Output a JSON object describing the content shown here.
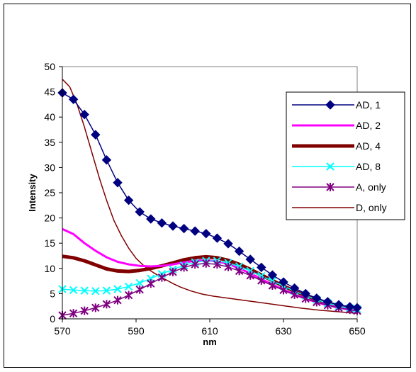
{
  "chart_data": {
    "type": "line",
    "xlabel": "nm",
    "ylabel": "Intensity",
    "xlim": [
      570,
      650
    ],
    "ylim": [
      0,
      50
    ],
    "xticks": [
      570,
      590,
      610,
      630,
      650
    ],
    "yticks": [
      0,
      5,
      10,
      15,
      20,
      25,
      30,
      35,
      40,
      45,
      50
    ],
    "grid": false,
    "legend_position": "right",
    "series": [
      {
        "name": "AD, 1",
        "color": "#000080",
        "marker": "diamond",
        "line": "thin",
        "points": [
          [
            570,
            44.8
          ],
          [
            573,
            43.5
          ],
          [
            576,
            40.5
          ],
          [
            579,
            36.5
          ],
          [
            582,
            31.5
          ],
          [
            585,
            27
          ],
          [
            588,
            23.5
          ],
          [
            591,
            21.2
          ],
          [
            594,
            19.8
          ],
          [
            597,
            19
          ],
          [
            600,
            18.4
          ],
          [
            603,
            17.9
          ],
          [
            606,
            17.4
          ],
          [
            609,
            16.9
          ],
          [
            612,
            16
          ],
          [
            615,
            14.9
          ],
          [
            618,
            13.4
          ],
          [
            621,
            11.8
          ],
          [
            624,
            10.2
          ],
          [
            627,
            8.7
          ],
          [
            630,
            7.3
          ],
          [
            633,
            6.1
          ],
          [
            636,
            5
          ],
          [
            639,
            4.1
          ],
          [
            642,
            3.4
          ],
          [
            645,
            2.8
          ],
          [
            648,
            2.4
          ],
          [
            650,
            2.2
          ]
        ]
      },
      {
        "name": "AD, 2",
        "color": "#FF00FF",
        "marker": "none",
        "line": "medium",
        "points": [
          [
            570,
            17.8
          ],
          [
            573,
            16.8
          ],
          [
            576,
            15
          ],
          [
            579,
            13.5
          ],
          [
            582,
            12.2
          ],
          [
            585,
            11.3
          ],
          [
            588,
            10.8
          ],
          [
            591,
            10.5
          ],
          [
            594,
            10.4
          ],
          [
            597,
            10.5
          ],
          [
            600,
            10.8
          ],
          [
            603,
            11.2
          ],
          [
            606,
            11.5
          ],
          [
            609,
            11.6
          ],
          [
            612,
            11.4
          ],
          [
            615,
            10.9
          ],
          [
            618,
            10
          ],
          [
            621,
            9
          ],
          [
            624,
            7.9
          ],
          [
            627,
            6.8
          ],
          [
            630,
            5.8
          ],
          [
            633,
            4.8
          ],
          [
            636,
            4
          ],
          [
            639,
            3.3
          ],
          [
            642,
            2.7
          ],
          [
            645,
            2.2
          ],
          [
            648,
            1.8
          ],
          [
            650,
            1.6
          ]
        ]
      },
      {
        "name": "AD, 4",
        "color": "#800000",
        "marker": "none",
        "line": "thick",
        "points": [
          [
            570,
            12.4
          ],
          [
            573,
            12.1
          ],
          [
            576,
            11.5
          ],
          [
            579,
            10.7
          ],
          [
            582,
            9.9
          ],
          [
            585,
            9.5
          ],
          [
            588,
            9.4
          ],
          [
            591,
            9.6
          ],
          [
            594,
            10
          ],
          [
            597,
            10.5
          ],
          [
            600,
            11.1
          ],
          [
            603,
            11.7
          ],
          [
            606,
            12.1
          ],
          [
            609,
            12.3
          ],
          [
            612,
            12.1
          ],
          [
            615,
            11.6
          ],
          [
            618,
            10.8
          ],
          [
            621,
            9.8
          ],
          [
            624,
            8.7
          ],
          [
            627,
            7.6
          ],
          [
            630,
            6.5
          ],
          [
            633,
            5.5
          ],
          [
            636,
            4.6
          ],
          [
            639,
            3.8
          ],
          [
            642,
            3.1
          ],
          [
            645,
            2.5
          ],
          [
            648,
            2.1
          ],
          [
            650,
            1.9
          ]
        ]
      },
      {
        "name": "AD, 8",
        "color": "#00FFFF",
        "marker": "x",
        "line": "thin",
        "points": [
          [
            570,
            5.9
          ],
          [
            573,
            5.7
          ],
          [
            576,
            5.6
          ],
          [
            579,
            5.5
          ],
          [
            582,
            5.6
          ],
          [
            585,
            5.9
          ],
          [
            588,
            6.4
          ],
          [
            591,
            7.1
          ],
          [
            594,
            8
          ],
          [
            597,
            8.9
          ],
          [
            600,
            9.8
          ],
          [
            603,
            10.6
          ],
          [
            606,
            11.2
          ],
          [
            609,
            11.5
          ],
          [
            612,
            11.5
          ],
          [
            615,
            11.1
          ],
          [
            618,
            10.4
          ],
          [
            621,
            9.5
          ],
          [
            624,
            8.5
          ],
          [
            627,
            7.5
          ],
          [
            630,
            6.5
          ],
          [
            633,
            5.5
          ],
          [
            636,
            4.6
          ],
          [
            639,
            3.8
          ],
          [
            642,
            3.1
          ],
          [
            645,
            2.5
          ],
          [
            648,
            2.1
          ],
          [
            650,
            1.9
          ]
        ]
      },
      {
        "name": "A, only",
        "color": "#800080",
        "marker": "asterisk",
        "line": "thin",
        "points": [
          [
            570,
            0.7
          ],
          [
            573,
            1.1
          ],
          [
            576,
            1.6
          ],
          [
            579,
            2.2
          ],
          [
            582,
            2.9
          ],
          [
            585,
            3.7
          ],
          [
            588,
            4.7
          ],
          [
            591,
            5.8
          ],
          [
            594,
            7
          ],
          [
            597,
            8.2
          ],
          [
            600,
            9.3
          ],
          [
            603,
            10.2
          ],
          [
            606,
            10.8
          ],
          [
            609,
            11
          ],
          [
            612,
            10.8
          ],
          [
            615,
            10.3
          ],
          [
            618,
            9.5
          ],
          [
            621,
            8.6
          ],
          [
            624,
            7.6
          ],
          [
            627,
            6.6
          ],
          [
            630,
            5.7
          ],
          [
            633,
            4.8
          ],
          [
            636,
            4
          ],
          [
            639,
            3.3
          ],
          [
            642,
            2.7
          ],
          [
            645,
            2.2
          ],
          [
            648,
            1.8
          ],
          [
            650,
            1.6
          ]
        ]
      },
      {
        "name": "D, only",
        "color": "#800000",
        "marker": "none",
        "line": "thin",
        "points": [
          [
            570,
            47.5
          ],
          [
            572,
            46
          ],
          [
            574,
            42.5
          ],
          [
            576,
            38
          ],
          [
            578,
            33
          ],
          [
            580,
            28
          ],
          [
            582,
            23.5
          ],
          [
            584,
            19.5
          ],
          [
            586,
            16.5
          ],
          [
            588,
            14
          ],
          [
            590,
            12
          ],
          [
            592,
            10.6
          ],
          [
            594,
            9.5
          ],
          [
            596,
            8.6
          ],
          [
            598,
            7.8
          ],
          [
            600,
            7
          ],
          [
            602,
            6.3
          ],
          [
            605,
            5.5
          ],
          [
            608,
            4.9
          ],
          [
            611,
            4.5
          ],
          [
            614,
            4.2
          ],
          [
            617,
            3.9
          ],
          [
            620,
            3.6
          ],
          [
            625,
            3.1
          ],
          [
            630,
            2.6
          ],
          [
            635,
            2.1
          ],
          [
            640,
            1.7
          ],
          [
            645,
            1.4
          ],
          [
            650,
            1.1
          ]
        ]
      }
    ]
  }
}
